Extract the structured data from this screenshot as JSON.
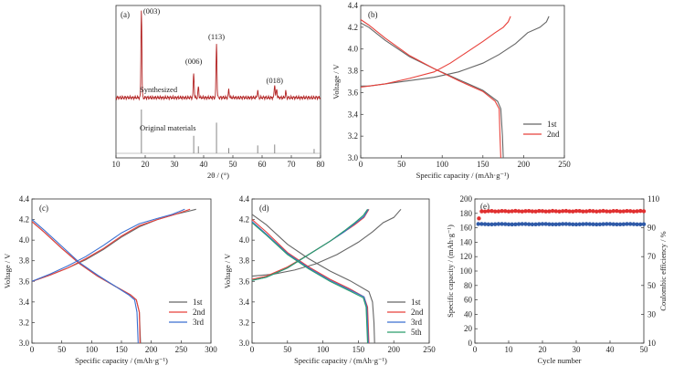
{
  "chart_data": [
    {
      "panel": "(a)",
      "type": "line",
      "xlabel": "2θ / (°)",
      "ylabel": "",
      "xlim": [
        10,
        80
      ],
      "xticks": [
        10,
        20,
        30,
        40,
        50,
        60,
        70,
        80
      ],
      "series": [
        {
          "name": "Synthesized",
          "color": "#b22222",
          "peaks": [
            [
              18.7,
              1.0
            ],
            [
              36.6,
              0.28
            ],
            [
              38.2,
              0.12
            ],
            [
              44.4,
              0.62
            ],
            [
              48.6,
              0.09
            ],
            [
              58.5,
              0.08
            ],
            [
              64.3,
              0.15
            ],
            [
              65.0,
              0.1
            ],
            [
              68.1,
              0.07
            ]
          ]
        },
        {
          "name": "Original materials",
          "color": "#888888",
          "peaks": [
            [
              18.7,
              1.0
            ],
            [
              36.6,
              0.4
            ],
            [
              38.2,
              0.16
            ],
            [
              44.4,
              0.7
            ],
            [
              48.6,
              0.12
            ],
            [
              58.5,
              0.18
            ],
            [
              64.3,
              0.2
            ],
            [
              77.8,
              0.1
            ]
          ]
        }
      ],
      "annotations": [
        {
          "text": "(003)",
          "x": 18.7
        },
        {
          "text": "(006)",
          "x": 36.6
        },
        {
          "text": "(113)",
          "x": 44.4
        },
        {
          "text": "(018)",
          "x": 64.3
        }
      ]
    },
    {
      "panel": "(b)",
      "type": "line",
      "xlabel": "Specific capacity / (mAh·g⁻¹)",
      "ylabel": "Voltage / V",
      "xlim": [
        0,
        250
      ],
      "ylim": [
        3.0,
        4.4
      ],
      "xticks": [
        0,
        50,
        100,
        150,
        200,
        250
      ],
      "yticks": [
        3.0,
        3.2,
        3.4,
        3.6,
        3.8,
        4.0,
        4.2,
        4.4
      ],
      "series": [
        {
          "name": "1st",
          "color": "#666666",
          "charge": [
            [
              0,
              3.66
            ],
            [
              10,
              3.66
            ],
            [
              30,
              3.68
            ],
            [
              60,
              3.71
            ],
            [
              90,
              3.74
            ],
            [
              120,
              3.79
            ],
            [
              150,
              3.87
            ],
            [
              170,
              3.95
            ],
            [
              190,
              4.05
            ],
            [
              205,
              4.15
            ],
            [
              220,
              4.2
            ],
            [
              228,
              4.25
            ],
            [
              231,
              4.3
            ]
          ],
          "discharge": [
            [
              0,
              4.24
            ],
            [
              10,
              4.2
            ],
            [
              30,
              4.08
            ],
            [
              60,
              3.93
            ],
            [
              90,
              3.82
            ],
            [
              120,
              3.72
            ],
            [
              150,
              3.62
            ],
            [
              168,
              3.52
            ],
            [
              172,
              3.45
            ],
            [
              174,
              3.2
            ],
            [
              175,
              3.0
            ]
          ]
        },
        {
          "name": "2nd",
          "color": "#e8403a",
          "charge": [
            [
              0,
              3.65
            ],
            [
              10,
              3.66
            ],
            [
              30,
              3.68
            ],
            [
              60,
              3.73
            ],
            [
              90,
              3.79
            ],
            [
              110,
              3.87
            ],
            [
              130,
              3.97
            ],
            [
              150,
              4.07
            ],
            [
              165,
              4.15
            ],
            [
              175,
              4.2
            ],
            [
              181,
              4.25
            ],
            [
              184,
              4.3
            ]
          ],
          "discharge": [
            [
              0,
              4.27
            ],
            [
              10,
              4.22
            ],
            [
              30,
              4.1
            ],
            [
              60,
              3.94
            ],
            [
              90,
              3.82
            ],
            [
              120,
              3.71
            ],
            [
              150,
              3.61
            ],
            [
              165,
              3.52
            ],
            [
              170,
              3.45
            ],
            [
              171,
              3.2
            ],
            [
              172,
              3.0
            ]
          ]
        }
      ]
    },
    {
      "panel": "(c)",
      "type": "line",
      "xlabel": "Specific capacity / (mAh·g⁻¹)",
      "ylabel": "Voltage / V",
      "xlim": [
        0,
        300
      ],
      "ylim": [
        3.0,
        4.4
      ],
      "xticks": [
        0,
        50,
        100,
        150,
        200,
        250,
        300
      ],
      "yticks": [
        3.0,
        3.2,
        3.4,
        3.6,
        3.8,
        4.0,
        4.2,
        4.4
      ],
      "series": [
        {
          "name": "1st",
          "color": "#666666",
          "charge": [
            [
              0,
              3.6
            ],
            [
              30,
              3.66
            ],
            [
              60,
              3.73
            ],
            [
              90,
              3.81
            ],
            [
              120,
              3.91
            ],
            [
              150,
              4.03
            ],
            [
              180,
              4.13
            ],
            [
              210,
              4.2
            ],
            [
              240,
              4.25
            ],
            [
              262,
              4.28
            ],
            [
              275,
              4.3
            ]
          ],
          "discharge": [
            [
              0,
              4.18
            ],
            [
              20,
              4.08
            ],
            [
              50,
              3.92
            ],
            [
              80,
              3.77
            ],
            [
              110,
              3.65
            ],
            [
              140,
              3.55
            ],
            [
              165,
              3.47
            ],
            [
              175,
              3.42
            ],
            [
              180,
              3.3
            ],
            [
              182,
              3.0
            ]
          ]
        },
        {
          "name": "2nd",
          "color": "#e8403a",
          "charge": [
            [
              0,
              3.6
            ],
            [
              30,
              3.66
            ],
            [
              60,
              3.73
            ],
            [
              90,
              3.82
            ],
            [
              120,
              3.92
            ],
            [
              150,
              4.04
            ],
            [
              180,
              4.14
            ],
            [
              210,
              4.2
            ],
            [
              240,
              4.25
            ],
            [
              255,
              4.28
            ],
            [
              265,
              4.3
            ]
          ],
          "discharge": [
            [
              0,
              4.18
            ],
            [
              20,
              4.08
            ],
            [
              50,
              3.92
            ],
            [
              80,
              3.77
            ],
            [
              110,
              3.65
            ],
            [
              140,
              3.55
            ],
            [
              165,
              3.47
            ],
            [
              175,
              3.42
            ],
            [
              180,
              3.3
            ],
            [
              181,
              3.0
            ]
          ]
        },
        {
          "name": "3rd",
          "color": "#3a6fd1",
          "charge": [
            [
              0,
              3.6
            ],
            [
              30,
              3.67
            ],
            [
              60,
              3.75
            ],
            [
              90,
              3.84
            ],
            [
              120,
              3.95
            ],
            [
              150,
              4.07
            ],
            [
              180,
              4.16
            ],
            [
              210,
              4.21
            ],
            [
              235,
              4.25
            ],
            [
              248,
              4.28
            ],
            [
              256,
              4.3
            ]
          ],
          "discharge": [
            [
              0,
              4.2
            ],
            [
              20,
              4.1
            ],
            [
              50,
              3.94
            ],
            [
              80,
              3.78
            ],
            [
              110,
              3.66
            ],
            [
              140,
              3.55
            ],
            [
              162,
              3.47
            ],
            [
              172,
              3.42
            ],
            [
              176,
              3.3
            ],
            [
              178,
              3.0
            ]
          ]
        }
      ]
    },
    {
      "panel": "(d)",
      "type": "line",
      "xlabel": "Specific capacity / (mAh·g⁻¹)",
      "ylabel": "Voltage / V",
      "xlim": [
        0,
        250
      ],
      "ylim": [
        3.0,
        4.4
      ],
      "xticks": [
        0,
        50,
        100,
        150,
        200,
        250
      ],
      "yticks": [
        3.0,
        3.2,
        3.4,
        3.6,
        3.8,
        4.0,
        4.2,
        4.4
      ],
      "series": [
        {
          "name": "1st",
          "color": "#666666",
          "charge": [
            [
              0,
              3.65
            ],
            [
              30,
              3.67
            ],
            [
              60,
              3.71
            ],
            [
              90,
              3.77
            ],
            [
              120,
              3.86
            ],
            [
              150,
              3.98
            ],
            [
              170,
              4.08
            ],
            [
              185,
              4.17
            ],
            [
              200,
              4.22
            ],
            [
              210,
              4.3
            ]
          ],
          "discharge": [
            [
              0,
              4.25
            ],
            [
              20,
              4.15
            ],
            [
              50,
              3.96
            ],
            [
              80,
              3.82
            ],
            [
              110,
              3.7
            ],
            [
              140,
              3.6
            ],
            [
              165,
              3.5
            ],
            [
              170,
              3.4
            ],
            [
              172,
              3.2
            ],
            [
              173,
              3.0
            ]
          ]
        },
        {
          "name": "2nd",
          "color": "#e8403a",
          "charge": [
            [
              0,
              3.62
            ],
            [
              20,
              3.65
            ],
            [
              50,
              3.74
            ],
            [
              80,
              3.86
            ],
            [
              110,
              3.99
            ],
            [
              130,
              4.08
            ],
            [
              145,
              4.15
            ],
            [
              158,
              4.22
            ],
            [
              165,
              4.3
            ]
          ],
          "discharge": [
            [
              0,
              4.2
            ],
            [
              20,
              4.08
            ],
            [
              50,
              3.88
            ],
            [
              80,
              3.74
            ],
            [
              110,
              3.62
            ],
            [
              140,
              3.52
            ],
            [
              158,
              3.45
            ],
            [
              163,
              3.35
            ],
            [
              165,
              3.0
            ]
          ]
        },
        {
          "name": "3rd",
          "color": "#3a6fd1",
          "charge": [
            [
              0,
              3.61
            ],
            [
              20,
              3.64
            ],
            [
              50,
              3.73
            ],
            [
              80,
              3.86
            ],
            [
              110,
              3.99
            ],
            [
              130,
              4.08
            ],
            [
              145,
              4.16
            ],
            [
              158,
              4.23
            ],
            [
              164,
              4.3
            ]
          ],
          "discharge": [
            [
              0,
              4.18
            ],
            [
              20,
              4.06
            ],
            [
              50,
              3.87
            ],
            [
              80,
              3.73
            ],
            [
              110,
              3.61
            ],
            [
              140,
              3.51
            ],
            [
              158,
              3.45
            ],
            [
              162,
              3.35
            ],
            [
              164,
              3.0
            ]
          ]
        },
        {
          "name": "5th",
          "color": "#2a9d6a",
          "charge": [
            [
              0,
              3.61
            ],
            [
              20,
              3.64
            ],
            [
              50,
              3.73
            ],
            [
              80,
              3.86
            ],
            [
              110,
              3.99
            ],
            [
              130,
              4.09
            ],
            [
              145,
              4.17
            ],
            [
              157,
              4.24
            ],
            [
              163,
              4.3
            ]
          ],
          "discharge": [
            [
              0,
              4.17
            ],
            [
              20,
              4.05
            ],
            [
              50,
              3.86
            ],
            [
              80,
              3.72
            ],
            [
              110,
              3.6
            ],
            [
              140,
              3.5
            ],
            [
              157,
              3.44
            ],
            [
              161,
              3.35
            ],
            [
              163,
              3.0
            ]
          ]
        }
      ]
    },
    {
      "panel": "(e)",
      "type": "scatter",
      "xlabel": "Cycle number",
      "ylabel": "Specific capacity / (mAh·g⁻¹)",
      "y2label": "Coulombic efficiency / %",
      "xlim": [
        0,
        50
      ],
      "ylim": [
        0,
        200
      ],
      "y2lim": [
        10,
        110
      ],
      "xticks": [
        0,
        10,
        20,
        30,
        40,
        50
      ],
      "yticks": [
        0,
        20,
        40,
        60,
        80,
        100,
        120,
        140,
        160,
        180,
        200
      ],
      "y2ticks": [
        10,
        30,
        50,
        70,
        90,
        110
      ],
      "series": [
        {
          "name": "Specific capacity",
          "color": "#2f5aa8",
          "axis": "left",
          "cycles": [
            1,
            50
          ],
          "value": 165
        },
        {
          "name": "Coulombic efficiency",
          "color": "#e03030",
          "axis": "right",
          "first": 96.5,
          "cycles": [
            2,
            50
          ],
          "value": 101.5
        }
      ]
    }
  ]
}
